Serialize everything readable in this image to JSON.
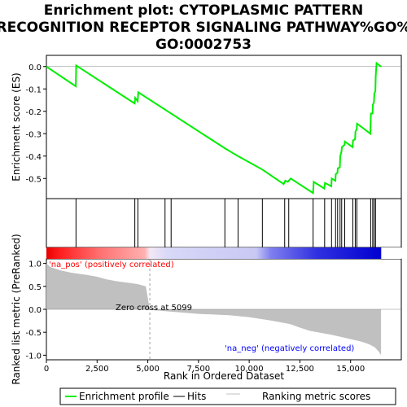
{
  "chart_data": {
    "type": "line",
    "title": "Enrichment plot: CYTOPLASMIC PATTERN RECOGNITION RECEPTOR SIGNALING PATHWAY%GO%GO:0002753",
    "title_lines": [
      "Enrichment plot: CYTOPLASMIC PATTERN",
      "RECOGNITION RECEPTOR SIGNALING PATHWAY%GO%",
      "GO:0002753"
    ],
    "es_panel": {
      "ylabel": "Enrichment score (ES)",
      "ylim": [
        -0.59,
        0.05
      ],
      "yticks": [
        0.0,
        -0.1,
        -0.2,
        -0.3,
        -0.4,
        -0.5
      ],
      "ytick_labels": [
        "0.0",
        "-0.1",
        "-0.2",
        "-0.3",
        "-0.4",
        "-0.5"
      ],
      "line_color": "#00ee00",
      "points": [
        [
          0,
          0.0
        ],
        [
          1450,
          -0.088
        ],
        [
          1470,
          0.005
        ],
        [
          4350,
          -0.165
        ],
        [
          4380,
          -0.14
        ],
        [
          4500,
          -0.155
        ],
        [
          4530,
          -0.115
        ],
        [
          8800,
          -0.365
        ],
        [
          9450,
          -0.4
        ],
        [
          10650,
          -0.46
        ],
        [
          11700,
          -0.525
        ],
        [
          11780,
          -0.51
        ],
        [
          11900,
          -0.515
        ],
        [
          12050,
          -0.5
        ],
        [
          13150,
          -0.565
        ],
        [
          13180,
          -0.515
        ],
        [
          13700,
          -0.545
        ],
        [
          13740,
          -0.52
        ],
        [
          14050,
          -0.535
        ],
        [
          14070,
          -0.5
        ],
        [
          14250,
          -0.51
        ],
        [
          14270,
          -0.48
        ],
        [
          14350,
          -0.475
        ],
        [
          14370,
          -0.455
        ],
        [
          14470,
          -0.45
        ],
        [
          14490,
          -0.4
        ],
        [
          14550,
          -0.38
        ],
        [
          14570,
          -0.36
        ],
        [
          14700,
          -0.35
        ],
        [
          14720,
          -0.335
        ],
        [
          15100,
          -0.36
        ],
        [
          15120,
          -0.33
        ],
        [
          15220,
          -0.325
        ],
        [
          15240,
          -0.29
        ],
        [
          15300,
          -0.28
        ],
        [
          15320,
          -0.255
        ],
        [
          15980,
          -0.3
        ],
        [
          16000,
          -0.21
        ],
        [
          16080,
          -0.21
        ],
        [
          16100,
          -0.17
        ],
        [
          16150,
          -0.16
        ],
        [
          16170,
          -0.12
        ],
        [
          16220,
          -0.11
        ],
        [
          16240,
          -0.04
        ],
        [
          16280,
          0.015
        ],
        [
          16500,
          0.0
        ]
      ]
    },
    "hits": [
      1460,
      4360,
      4510,
      5850,
      6150,
      8800,
      9450,
      10650,
      11750,
      11950,
      13150,
      13720,
      14060,
      14260,
      14360,
      14480,
      14560,
      14710,
      15110,
      15230,
      15310,
      15990,
      16090,
      16160,
      16230
    ],
    "metric_panel": {
      "ylabel": "Ranked list metric (PreRanked)",
      "xlabel": "Rank in Ordered Dataset",
      "xlim": [
        0,
        17500
      ],
      "ylim": [
        -1.1,
        1.1
      ],
      "xticks": [
        0,
        2500,
        5000,
        7500,
        10000,
        12500,
        15000
      ],
      "xtick_labels": [
        "0",
        "2,500",
        "5,000",
        "7,500",
        "10,000",
        "12,500",
        "15,000"
      ],
      "yticks": [
        1.0,
        0.5,
        0.0,
        -0.5,
        -1.0
      ],
      "ytick_labels": [
        "1.0",
        "0.5",
        "0.0",
        "-0.5",
        "-1.0"
      ],
      "fill_color": "#c0c0c0",
      "profile": [
        [
          0,
          1.0
        ],
        [
          200,
          0.92
        ],
        [
          700,
          0.85
        ],
        [
          1200,
          0.8
        ],
        [
          1500,
          0.78
        ],
        [
          2000,
          0.75
        ],
        [
          2500,
          0.71
        ],
        [
          3000,
          0.65
        ],
        [
          3500,
          0.61
        ],
        [
          4000,
          0.58
        ],
        [
          4500,
          0.55
        ],
        [
          4900,
          0.5
        ],
        [
          5099,
          0.0
        ],
        [
          5300,
          -0.02
        ],
        [
          7500,
          -0.1
        ],
        [
          9000,
          -0.13
        ],
        [
          10000,
          -0.17
        ],
        [
          11000,
          -0.24
        ],
        [
          12000,
          -0.32
        ],
        [
          12500,
          -0.4
        ],
        [
          13000,
          -0.47
        ],
        [
          13500,
          -0.51
        ],
        [
          14000,
          -0.55
        ],
        [
          14500,
          -0.6
        ],
        [
          15000,
          -0.65
        ],
        [
          15500,
          -0.7
        ],
        [
          15900,
          -0.76
        ],
        [
          16200,
          -0.83
        ],
        [
          16400,
          -0.93
        ],
        [
          16500,
          -1.0
        ]
      ],
      "zero_cross_rank": 5099,
      "zero_cross_label": "Zero cross at 5099",
      "pos_label": "'na_pos' (positively correlated)",
      "neg_label": "'na_neg' (negatively correlated)",
      "pos_color": "#ff0000",
      "neg_color": "#0000ff"
    },
    "legend": {
      "placement": "bottom",
      "entries": [
        {
          "label": "Enrichment profile",
          "color": "#00ee00"
        },
        {
          "label": "Hits",
          "color": "#000000"
        },
        {
          "label": "Ranking metric scores",
          "color": "#c0c0c0"
        }
      ]
    }
  }
}
